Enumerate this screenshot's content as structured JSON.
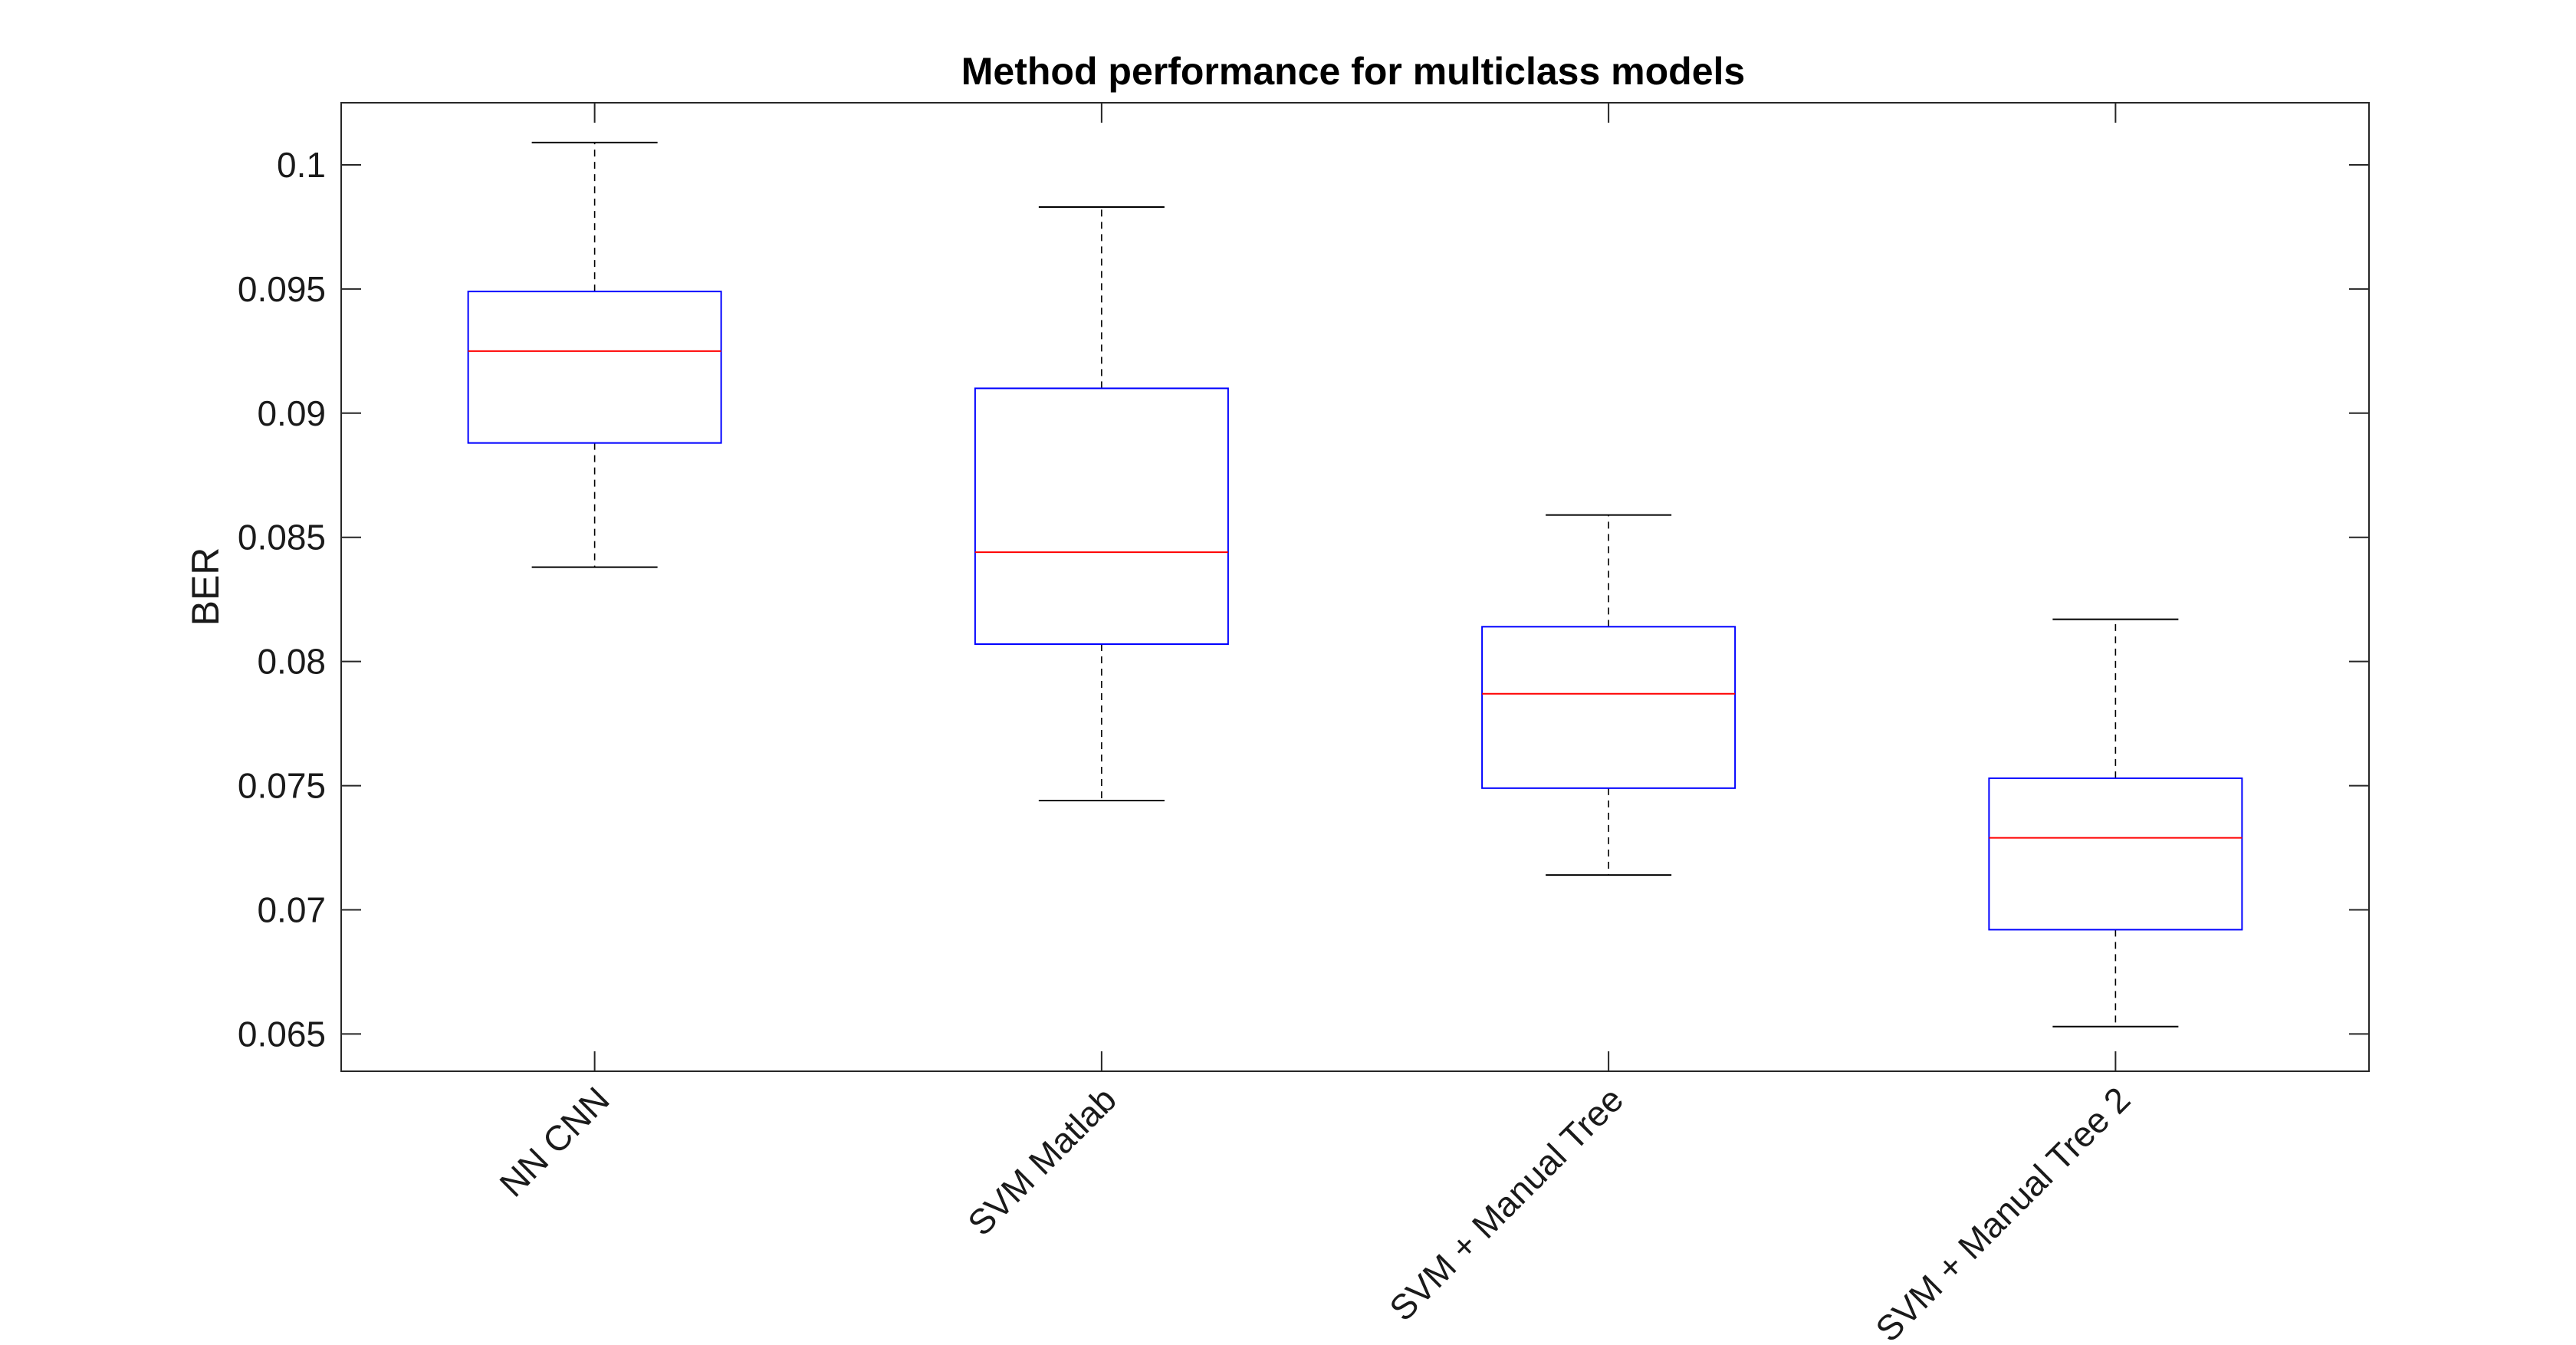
{
  "chart_data": {
    "type": "box",
    "title": "Method performance for multiclass models",
    "xlabel": "",
    "ylabel": "BER",
    "ylim": [
      0.0635,
      0.1025
    ],
    "y_ticks": [
      0.065,
      0.07,
      0.075,
      0.08,
      0.085,
      0.09,
      0.095,
      0.1
    ],
    "y_tick_labels": [
      "0.065",
      "0.07",
      "0.075",
      "0.08",
      "0.085",
      "0.09",
      "0.095",
      "0.1"
    ],
    "categories": [
      "NN CNN",
      "SVM Matlab",
      "SVM + Manual Tree",
      "SVM + Manual Tree 2"
    ],
    "boxes": [
      {
        "category": "NN CNN",
        "whisker_low": 0.0838,
        "q1": 0.0888,
        "median": 0.0925,
        "q3": 0.0949,
        "whisker_high": 0.1009
      },
      {
        "category": "SVM Matlab",
        "whisker_low": 0.0744,
        "q1": 0.0807,
        "median": 0.0844,
        "q3": 0.091,
        "whisker_high": 0.0983
      },
      {
        "category": "SVM + Manual Tree",
        "whisker_low": 0.0714,
        "q1": 0.0749,
        "median": 0.0787,
        "q3": 0.0814,
        "whisker_high": 0.0859
      },
      {
        "category": "SVM + Manual Tree 2",
        "whisker_low": 0.0653,
        "q1": 0.0692,
        "median": 0.0729,
        "q3": 0.0753,
        "whisker_high": 0.0817
      }
    ],
    "grid": false,
    "colors": {
      "box": "#0000ff",
      "median": "#ff0000",
      "whisker": "#000000",
      "axes": "#262626"
    }
  }
}
